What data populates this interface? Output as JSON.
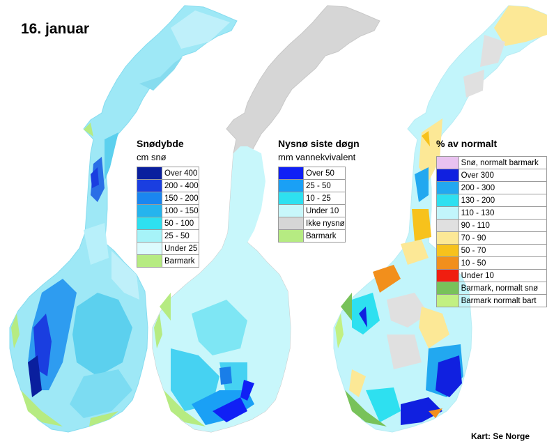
{
  "date": "16. januar",
  "credit": "Kart: Se Norge",
  "panels": [
    {
      "id": "snow_depth",
      "title": "Snødybde",
      "subtitle": "cm snø",
      "legend": [
        {
          "label": "Over 400",
          "color": "#0a1f9e"
        },
        {
          "label": "200 - 400",
          "color": "#1a3ee0"
        },
        {
          "label": "150 - 200",
          "color": "#1a86f0"
        },
        {
          "label": "100 - 150",
          "color": "#25b4ee"
        },
        {
          "label": "50 - 100",
          "color": "#2ee0f0"
        },
        {
          "label": "25 - 50",
          "color": "#a6f3f8"
        },
        {
          "label": "Under 25",
          "color": "#dcfbfd"
        },
        {
          "label": "Barmark",
          "color": "#b6eb82"
        }
      ]
    },
    {
      "id": "new_snow",
      "title": "Nysnø siste døgn",
      "subtitle": "mm vannekvivalent",
      "legend": [
        {
          "label": "Over 50",
          "color": "#1020f5"
        },
        {
          "label": "25 - 50",
          "color": "#1aa0f5"
        },
        {
          "label": "10 - 25",
          "color": "#2ee0f0"
        },
        {
          "label": "Under 10",
          "color": "#c8f7fb"
        },
        {
          "label": "Ikke nysnø",
          "color": "#d6d6d6"
        },
        {
          "label": "Barmark",
          "color": "#b6eb82"
        }
      ]
    },
    {
      "id": "pct_normal",
      "title": "% av normalt",
      "subtitle": "",
      "legend": [
        {
          "label": "Snø, normalt barmark",
          "color": "#e9c2f0"
        },
        {
          "label": "Over 300",
          "color": "#1020e0"
        },
        {
          "label": "200 - 300",
          "color": "#22a8f0"
        },
        {
          "label": "130 - 200",
          "color": "#2ee0f0"
        },
        {
          "label": "110 - 130",
          "color": "#c2f5fb"
        },
        {
          "label": "90 - 110",
          "color": "#e0e0e0"
        },
        {
          "label": "70 - 90",
          "color": "#fce896"
        },
        {
          "label": "50 - 70",
          "color": "#f7c21c"
        },
        {
          "label": "10 - 50",
          "color": "#f28f1c"
        },
        {
          "label": "Under 10",
          "color": "#f01e10"
        },
        {
          "label": "Barmark, normalt snø",
          "color": "#78c25a"
        },
        {
          "label": "Barmark normalt bart",
          "color": "#c2f082"
        }
      ]
    }
  ]
}
